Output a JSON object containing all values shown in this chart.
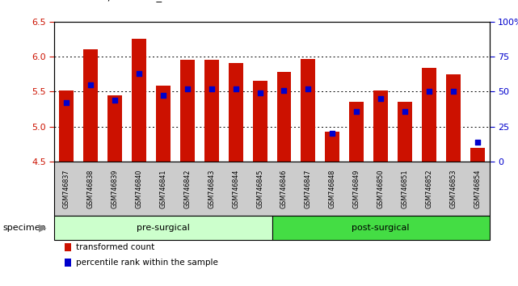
{
  "categories": [
    "GSM746837",
    "GSM746838",
    "GSM746839",
    "GSM746840",
    "GSM746841",
    "GSM746842",
    "GSM746843",
    "GSM746844",
    "GSM746845",
    "GSM746846",
    "GSM746847",
    "GSM746848",
    "GSM746849",
    "GSM746850",
    "GSM746851",
    "GSM746852",
    "GSM746853",
    "GSM746854"
  ],
  "bar_values": [
    5.51,
    6.1,
    5.45,
    6.25,
    5.58,
    5.95,
    5.95,
    5.91,
    5.65,
    5.78,
    5.97,
    4.93,
    5.35,
    5.51,
    5.35,
    5.84,
    5.75,
    4.7
  ],
  "percentile_values": [
    42,
    55,
    44,
    63,
    47,
    52,
    52,
    52,
    49,
    51,
    52,
    20,
    36,
    45,
    36,
    50,
    50,
    14
  ],
  "ymin": 4.5,
  "ymax": 6.5,
  "bar_color": "#cc1100",
  "dot_color": "#0000cc",
  "bar_bottom": 4.5,
  "groups": [
    {
      "label": "pre-surgical",
      "start": 0,
      "end": 9,
      "color": "#ccffcc"
    },
    {
      "label": "post-surgical",
      "start": 9,
      "end": 18,
      "color": "#44dd44"
    }
  ],
  "specimen_label": "specimen",
  "legend_items": [
    {
      "label": "transformed count",
      "color": "#cc1100"
    },
    {
      "label": "percentile rank within the sample",
      "color": "#0000cc"
    }
  ],
  "bg_color": "#ffffff",
  "plot_bg_color": "#ffffff",
  "tick_color_left": "#cc1100",
  "tick_color_right": "#0000cc",
  "grid_color": "#000000",
  "yticks_left": [
    4.5,
    5.0,
    5.5,
    6.0,
    6.5
  ],
  "yticks_right": [
    0,
    25,
    50,
    75,
    100
  ],
  "xtick_band_color": "#cccccc",
  "fig_width": 6.41,
  "fig_height": 3.54,
  "dpi": 100
}
